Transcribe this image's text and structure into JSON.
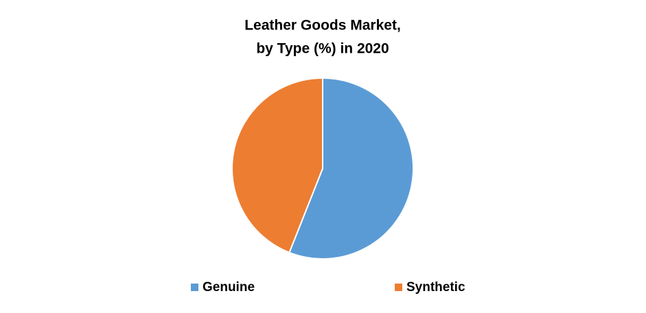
{
  "chart_data": {
    "type": "pie",
    "title": [
      "Leather Goods Market,",
      "by Type (%) in 2020"
    ],
    "categories": [
      "Genuine",
      "Synthetic"
    ],
    "values": [
      56,
      44
    ],
    "colors": [
      "#5b9bd5",
      "#ed7d31"
    ],
    "legend": "bottom"
  }
}
